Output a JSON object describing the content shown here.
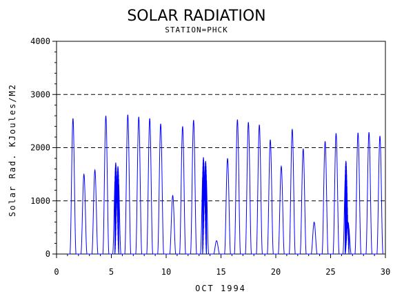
{
  "chart_data": {
    "type": "line",
    "title": "SOLAR RADIATION",
    "subtitle": "STATION=PHCK",
    "xlabel": "OCT 1994",
    "ylabel": "Solar Rad. KJoules/M2",
    "xlim": [
      0,
      30
    ],
    "ylim": [
      0,
      4000
    ],
    "x_ticks": [
      "0",
      "5",
      "10",
      "15",
      "20",
      "25",
      "30"
    ],
    "y_ticks": [
      "0",
      "1000",
      "2000",
      "3000",
      "4000"
    ],
    "grid": "horizontal dashed at major y ticks",
    "line_color": "#0000ff",
    "series": [
      {
        "x": [
          1.5,
          2.5,
          3.5,
          4.5,
          5.4,
          5.6,
          6.5,
          7.5,
          8.5,
          9.5,
          10.6,
          11.5,
          12.5,
          13.4,
          13.6,
          14.6,
          15.6,
          16.5,
          17.5,
          18.5,
          19.5,
          20.5,
          21.5,
          22.5,
          23.5,
          24.5,
          25.5,
          26.4,
          26.6,
          27.5,
          28.5,
          29.5
        ],
        "values": [
          2550,
          1500,
          1580,
          2600,
          1720,
          1650,
          2620,
          2580,
          2550,
          2450,
          1100,
          2400,
          2520,
          1820,
          1750,
          250,
          1800,
          2530,
          2480,
          2430,
          2150,
          1650,
          2350,
          1980,
          600,
          2120,
          2270,
          1750,
          600,
          2280,
          2290,
          2220
        ]
      }
    ]
  }
}
